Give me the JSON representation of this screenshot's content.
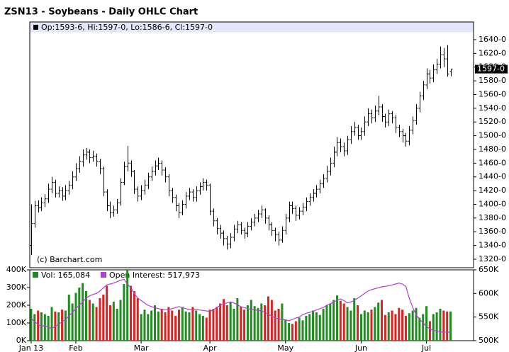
{
  "chart_data": [
    {
      "type": "ohlc",
      "title": "ZSN13 - Soybeans - Daily OHLC Chart",
      "legend_text": "Op:1593-6, Hi:1597-0, Lo:1586-6, Cl:1597-0",
      "annotations": [
        "(c) Barchart.com"
      ],
      "color": "#000000",
      "last_price": {
        "value": 1597,
        "label": "1597-0"
      },
      "xlim": [
        -0.4,
        128.7
      ],
      "ylim": [
        1307.6,
        1650.3
      ],
      "yticks": [
        {
          "value": 1320,
          "label": "1320-0"
        },
        {
          "value": 1340,
          "label": "1340-0"
        },
        {
          "value": 1360,
          "label": "1360-0"
        },
        {
          "value": 1380,
          "label": "1380-0"
        },
        {
          "value": 1400,
          "label": "1400-0"
        },
        {
          "value": 1420,
          "label": "1420-0"
        },
        {
          "value": 1440,
          "label": "1440-0"
        },
        {
          "value": 1460,
          "label": "1460-0"
        },
        {
          "value": 1480,
          "label": "1480-0"
        },
        {
          "value": 1500,
          "label": "1500-0"
        },
        {
          "value": 1520,
          "label": "1520-0"
        },
        {
          "value": 1540,
          "label": "1540-0"
        },
        {
          "value": 1560,
          "label": "1560-0"
        },
        {
          "value": 1580,
          "label": "1580-0"
        },
        {
          "value": 1600,
          "label": "1600-0"
        },
        {
          "value": 1620,
          "label": "1620-0"
        },
        {
          "value": 1640,
          "label": "1640-0"
        }
      ],
      "open": [
        1340,
        1372,
        1398,
        1395,
        1402,
        1408,
        1422,
        1432,
        1416,
        1420,
        1412,
        1420,
        1428,
        1440,
        1452,
        1462,
        1472,
        1476,
        1468,
        1470,
        1462,
        1452,
        1418,
        1398,
        1388,
        1392,
        1402,
        1432,
        1455,
        1460,
        1448,
        1422,
        1412,
        1420,
        1428,
        1440,
        1448,
        1456,
        1460,
        1450,
        1440,
        1420,
        1410,
        1398,
        1388,
        1400,
        1412,
        1418,
        1410,
        1420,
        1426,
        1432,
        1428,
        1390,
        1376,
        1365,
        1358,
        1350,
        1342,
        1352,
        1364,
        1370,
        1362,
        1358,
        1368,
        1374,
        1380,
        1386,
        1392,
        1380,
        1370,
        1362,
        1356,
        1348,
        1362,
        1380,
        1398,
        1394,
        1384,
        1390,
        1396,
        1404,
        1410,
        1416,
        1422,
        1430,
        1438,
        1448,
        1460,
        1476,
        1490,
        1484,
        1478,
        1494,
        1506,
        1512,
        1500,
        1506,
        1520,
        1532,
        1526,
        1536,
        1542,
        1528,
        1520,
        1532,
        1526,
        1512,
        1506,
        1500,
        1492,
        1508,
        1522,
        1540,
        1558,
        1574,
        1590,
        1584,
        1596,
        1604,
        1618,
        1612,
        1593.75
      ],
      "high": [
        1400,
        1405,
        1406,
        1410,
        1415,
        1430,
        1440,
        1436,
        1426,
        1425,
        1428,
        1434,
        1448,
        1460,
        1470,
        1480,
        1482,
        1480,
        1478,
        1474,
        1466,
        1455,
        1422,
        1404,
        1398,
        1408,
        1438,
        1462,
        1485,
        1464,
        1450,
        1426,
        1428,
        1436,
        1446,
        1455,
        1464,
        1468,
        1464,
        1454,
        1444,
        1424,
        1414,
        1402,
        1406,
        1418,
        1424,
        1422,
        1426,
        1432,
        1438,
        1436,
        1430,
        1394,
        1380,
        1370,
        1362,
        1354,
        1358,
        1370,
        1376,
        1374,
        1366,
        1374,
        1380,
        1386,
        1392,
        1398,
        1394,
        1384,
        1374,
        1366,
        1360,
        1368,
        1386,
        1404,
        1404,
        1398,
        1396,
        1402,
        1410,
        1416,
        1422,
        1428,
        1436,
        1444,
        1456,
        1468,
        1484,
        1498,
        1496,
        1490,
        1500,
        1514,
        1520,
        1516,
        1512,
        1528,
        1540,
        1538,
        1544,
        1558,
        1546,
        1532,
        1538,
        1536,
        1530,
        1516,
        1510,
        1504,
        1514,
        1528,
        1546,
        1564,
        1580,
        1598,
        1596,
        1604,
        1612,
        1630,
        1628,
        1632,
        1597
      ],
      "low": [
        1326,
        1366,
        1388,
        1390,
        1396,
        1402,
        1416,
        1410,
        1410,
        1405,
        1406,
        1414,
        1422,
        1434,
        1446,
        1455,
        1465,
        1460,
        1462,
        1455,
        1444,
        1412,
        1390,
        1380,
        1382,
        1386,
        1398,
        1428,
        1448,
        1440,
        1415,
        1404,
        1406,
        1414,
        1422,
        1434,
        1442,
        1450,
        1442,
        1432,
        1412,
        1402,
        1390,
        1380,
        1384,
        1394,
        1406,
        1404,
        1404,
        1414,
        1420,
        1420,
        1384,
        1368,
        1356,
        1350,
        1340,
        1334,
        1336,
        1346,
        1358,
        1356,
        1350,
        1352,
        1362,
        1368,
        1374,
        1380,
        1372,
        1362,
        1354,
        1346,
        1340,
        1344,
        1356,
        1374,
        1386,
        1376,
        1378,
        1384,
        1390,
        1398,
        1404,
        1410,
        1416,
        1424,
        1432,
        1442,
        1454,
        1470,
        1476,
        1470,
        1472,
        1488,
        1500,
        1494,
        1494,
        1500,
        1514,
        1518,
        1520,
        1530,
        1520,
        1512,
        1514,
        1518,
        1504,
        1498,
        1490,
        1484,
        1486,
        1502,
        1516,
        1534,
        1552,
        1568,
        1576,
        1578,
        1590,
        1598,
        1600,
        1586,
        1586.75
      ],
      "close": [
        1372,
        1398,
        1395,
        1402,
        1408,
        1422,
        1432,
        1416,
        1420,
        1412,
        1420,
        1428,
        1440,
        1452,
        1462,
        1472,
        1476,
        1468,
        1470,
        1462,
        1452,
        1418,
        1398,
        1388,
        1392,
        1402,
        1432,
        1455,
        1460,
        1448,
        1422,
        1412,
        1420,
        1428,
        1440,
        1448,
        1456,
        1460,
        1450,
        1440,
        1420,
        1410,
        1398,
        1388,
        1400,
        1412,
        1418,
        1410,
        1420,
        1426,
        1432,
        1428,
        1390,
        1376,
        1365,
        1358,
        1350,
        1342,
        1352,
        1364,
        1370,
        1362,
        1358,
        1368,
        1374,
        1380,
        1386,
        1392,
        1380,
        1370,
        1362,
        1356,
        1348,
        1362,
        1380,
        1398,
        1394,
        1384,
        1390,
        1396,
        1404,
        1410,
        1416,
        1422,
        1430,
        1438,
        1448,
        1460,
        1476,
        1490,
        1484,
        1478,
        1494,
        1506,
        1512,
        1500,
        1506,
        1520,
        1532,
        1526,
        1536,
        1542,
        1528,
        1520,
        1532,
        1526,
        1512,
        1506,
        1500,
        1492,
        1508,
        1522,
        1540,
        1558,
        1574,
        1590,
        1584,
        1596,
        1604,
        1618,
        1612,
        1590,
        1597
      ]
    },
    {
      "type": "bar",
      "xlim": [
        -0.4,
        128.7
      ],
      "xticks": [
        {
          "value": 0,
          "label": "Jan 13"
        },
        {
          "value": 13,
          "label": "Feb"
        },
        {
          "value": 32,
          "label": "Mar"
        },
        {
          "value": 52,
          "label": "Apr"
        },
        {
          "value": 74,
          "label": "May"
        },
        {
          "value": 96,
          "label": "Jun"
        },
        {
          "value": 115,
          "label": "Jul"
        }
      ],
      "ylim": [
        0,
        400000
      ],
      "yticks": [
        {
          "value": 0,
          "label": "0K"
        },
        {
          "value": 100000,
          "label": "100K"
        },
        {
          "value": 200000,
          "label": "200K"
        },
        {
          "value": 300000,
          "label": "300K"
        },
        {
          "value": 400000,
          "label": "400K"
        }
      ],
      "y2lim": [
        500000,
        650000
      ],
      "y2ticks": [
        {
          "value": 500000,
          "label": "500K"
        },
        {
          "value": 550000,
          "label": "550K"
        },
        {
          "value": 600000,
          "label": "600K"
        },
        {
          "value": 650000,
          "label": "650K"
        }
      ],
      "series": [
        {
          "name": "Vol: 165,084",
          "color": "#1e8c1e",
          "down_color": "#e02020",
          "values": [
            180000,
            150000,
            170000,
            160000,
            150000,
            140000,
            190000,
            165000,
            160000,
            175000,
            170000,
            260000,
            210000,
            270000,
            300000,
            325000,
            280000,
            230000,
            210000,
            190000,
            240000,
            260000,
            310000,
            200000,
            220000,
            180000,
            230000,
            320000,
            400000,
            310000,
            280000,
            240000,
            150000,
            175000,
            150000,
            170000,
            200000,
            165000,
            180000,
            160000,
            190000,
            170000,
            140000,
            175000,
            190000,
            165000,
            160000,
            190000,
            170000,
            150000,
            140000,
            130000,
            175000,
            180000,
            190000,
            210000,
            235000,
            200000,
            220000,
            180000,
            240000,
            190000,
            175000,
            200000,
            230000,
            195000,
            185000,
            210000,
            200000,
            250000,
            230000,
            170000,
            180000,
            210000,
            120000,
            100000,
            95000,
            110000,
            130000,
            115000,
            140000,
            150000,
            170000,
            160000,
            145000,
            180000,
            200000,
            210000,
            230000,
            255000,
            225000,
            210000,
            190000,
            170000,
            240000,
            200000,
            150000,
            170000,
            160000,
            175000,
            190000,
            215000,
            230000,
            145000,
            160000,
            170000,
            150000,
            185000,
            175000,
            140000,
            155000,
            170000,
            185000,
            130000,
            150000,
            195000,
            110000,
            150000,
            160000,
            180000,
            170000,
            165000,
            165084
          ]
        },
        {
          "name": "Open Interest: 517,973",
          "color": "#b040d0",
          "axis": "y2",
          "values": [
            548000,
            540000,
            535000,
            530000,
            532000,
            528000,
            526000,
            530000,
            535000,
            540000,
            545000,
            552000,
            560000,
            568000,
            575000,
            582000,
            590000,
            595000,
            598000,
            600000,
            605000,
            612000,
            618000,
            620000,
            622000,
            625000,
            628000,
            630000,
            620000,
            612000,
            600000,
            590000,
            585000,
            580000,
            575000,
            572000,
            570000,
            568000,
            566000,
            565000,
            566000,
            568000,
            570000,
            572000,
            570000,
            568000,
            566000,
            565000,
            566000,
            565000,
            564000,
            563000,
            562000,
            565000,
            570000,
            575000,
            578000,
            580000,
            582000,
            580000,
            576000,
            572000,
            570000,
            568000,
            566000,
            565000,
            564000,
            563000,
            560000,
            556000,
            552000,
            548000,
            546000,
            545000,
            544000,
            542000,
            545000,
            548000,
            550000,
            555000,
            558000,
            560000,
            562000,
            565000,
            568000,
            570000,
            575000,
            578000,
            582000,
            585000,
            588000,
            585000,
            580000,
            582000,
            585000,
            590000,
            595000,
            600000,
            605000,
            608000,
            610000,
            612000,
            614000,
            615000,
            616000,
            618000,
            620000,
            622000,
            620000,
            615000,
            590000,
            570000,
            555000,
            545000,
            538000,
            530000,
            525000,
            522000,
            520000,
            519000,
            518000,
            518000,
            517973
          ]
        }
      ]
    }
  ]
}
